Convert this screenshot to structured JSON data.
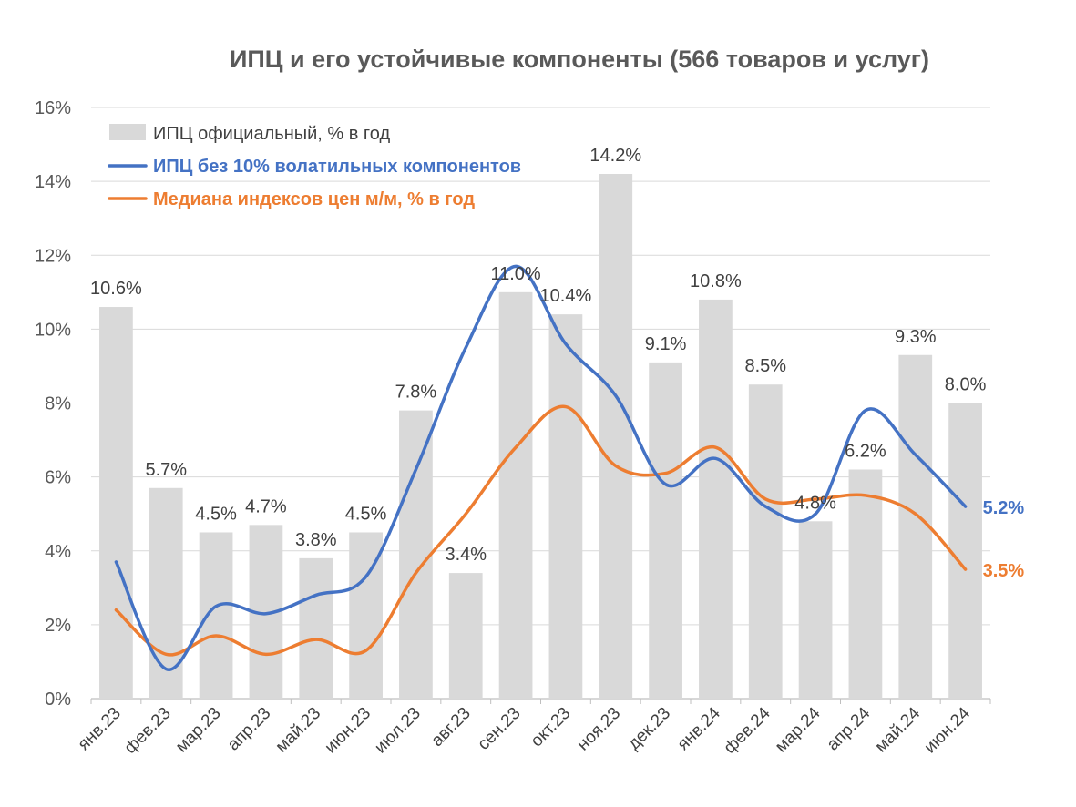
{
  "chart_data": {
    "type": "bar",
    "title": "ИПЦ и его устойчивые компоненты (566 товаров и услуг)",
    "categories": [
      "янв.23",
      "фев.23",
      "мар.23",
      "апр.23",
      "май.23",
      "июн.23",
      "июл.23",
      "авг.23",
      "сен.23",
      "окт.23",
      "ноя.23",
      "дек.23",
      "янв.24",
      "фев.24",
      "мар.24",
      "апр.24",
      "май.24",
      "июн.24"
    ],
    "ylim": [
      0,
      16
    ],
    "yticks": [
      "0%",
      "2%",
      "4%",
      "6%",
      "8%",
      "10%",
      "12%",
      "14%",
      "16%"
    ],
    "grid": true,
    "legend_position": "top-left",
    "series": [
      {
        "name": "ИПЦ официальный, % в год",
        "kind": "bar",
        "color": "#d9d9d9",
        "values": [
          10.6,
          5.7,
          4.5,
          4.7,
          3.8,
          4.5,
          7.8,
          3.4,
          11.0,
          10.4,
          14.2,
          9.1,
          10.8,
          8.5,
          4.8,
          6.2,
          9.3,
          8.0
        ],
        "labels": [
          "10.6%",
          "5.7%",
          "4.5%",
          "4.7%",
          "3.8%",
          "4.5%",
          "7.8%",
          "3.4%",
          "11.0%",
          "10.4%",
          "14.2%",
          "9.1%",
          "10.8%",
          "8.5%",
          "4.8%",
          "6.2%",
          "9.3%",
          "8.0%"
        ]
      },
      {
        "name": "ИПЦ без 10% волатильных компонентов",
        "kind": "line",
        "color": "#4472c4",
        "values": [
          3.7,
          0.8,
          2.5,
          2.3,
          2.8,
          3.3,
          6.2,
          9.5,
          11.7,
          9.6,
          8.2,
          5.8,
          6.5,
          5.2,
          5.0,
          7.8,
          6.6,
          5.2
        ],
        "end_label": "5.2%"
      },
      {
        "name": "Медиана индексов цен м/м, % в год",
        "kind": "line",
        "color": "#ed7d31",
        "values": [
          2.4,
          1.2,
          1.7,
          1.2,
          1.6,
          1.3,
          3.4,
          5.0,
          6.8,
          7.9,
          6.3,
          6.1,
          6.8,
          5.4,
          5.4,
          5.5,
          5.0,
          3.5
        ],
        "end_label": "3.5%"
      }
    ]
  }
}
